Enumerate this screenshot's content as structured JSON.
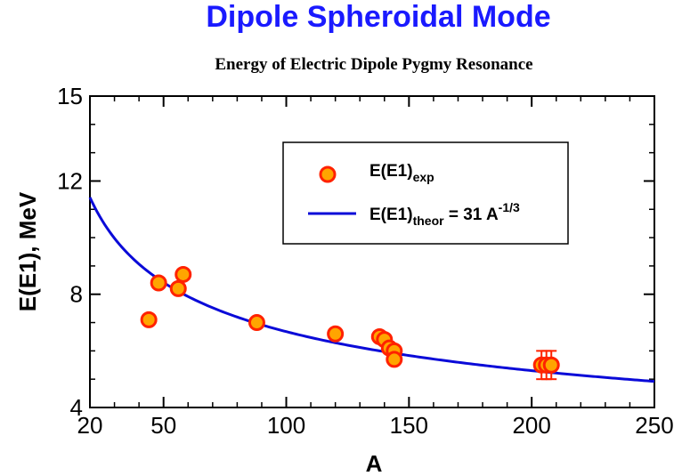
{
  "chart_data": {
    "type": "scatter",
    "title": "Dipole Spheroidal Mode",
    "subtitle": "Energy of Electric Dipole Pygmy Resonance",
    "xlabel": "A",
    "ylabel": "E(E1), MeV",
    "xlim": [
      20,
      250
    ],
    "ylim": [
      4,
      15
    ],
    "x_ticks": [
      20,
      50,
      100,
      150,
      200,
      250
    ],
    "y_ticks": [
      4,
      8,
      12,
      15
    ],
    "grid": false,
    "legend": {
      "position": "top-right",
      "exp_label": "E(E1)",
      "exp_sub": "exp",
      "theor_label": "E(E1)",
      "theor_sub": "theor",
      "theor_formula": " = 31 A",
      "theor_sup": "-1/3"
    },
    "series": [
      {
        "name": "E(E1)exp",
        "kind": "points",
        "color": "#ff2200",
        "fill": "#ffa500",
        "x": [
          44,
          48,
          56,
          58,
          88,
          120,
          138,
          140,
          142,
          144,
          144,
          204,
          206,
          208
        ],
        "y": [
          7.1,
          8.4,
          8.2,
          8.7,
          7.0,
          6.6,
          6.5,
          6.4,
          6.1,
          6.0,
          5.7,
          5.5,
          5.5,
          5.5
        ],
        "yerr": [
          0,
          0,
          0,
          0,
          0,
          0,
          0,
          0,
          0,
          0,
          0,
          0.5,
          0.5,
          0.5
        ]
      },
      {
        "name": "E(E1)theor = 31 A-1/3",
        "kind": "curve",
        "color": "#0a0ad8",
        "coefficient": 31,
        "exponent": -0.3333,
        "x_range": [
          20,
          250
        ]
      }
    ]
  }
}
